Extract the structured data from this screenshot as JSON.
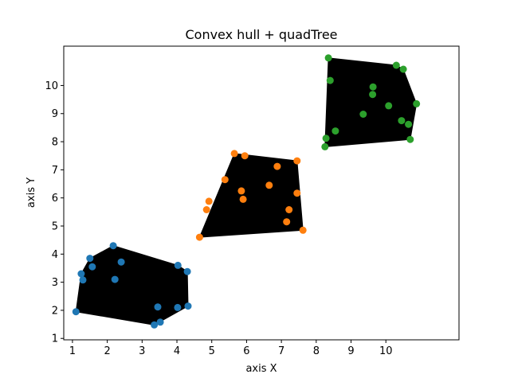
{
  "chart_data": {
    "type": "scatter",
    "title": "Convex hull + quadTree",
    "xlabel": "axis X",
    "ylabel": "axis Y",
    "xlim": [
      0.75,
      12.1
    ],
    "ylim": [
      0.95,
      11.4
    ],
    "xticks": [
      1,
      2,
      3,
      4,
      5,
      6,
      7,
      8,
      9,
      10
    ],
    "yticks": [
      1,
      2,
      3,
      4,
      5,
      6,
      7,
      8,
      9,
      10
    ],
    "grid": false,
    "legend": "none",
    "hull_color": "#000000",
    "series": [
      {
        "color": "#1f77b4",
        "points": [
          [
            1.1,
            1.95
          ],
          [
            1.25,
            3.3
          ],
          [
            1.3,
            3.08
          ],
          [
            1.5,
            3.85
          ],
          [
            1.57,
            3.55
          ],
          [
            2.17,
            4.3
          ],
          [
            2.22,
            3.1
          ],
          [
            2.4,
            3.72
          ],
          [
            3.35,
            1.48
          ],
          [
            3.45,
            2.12
          ],
          [
            3.52,
            1.58
          ],
          [
            4.02,
            2.1
          ],
          [
            4.03,
            3.6
          ],
          [
            4.3,
            3.38
          ],
          [
            4.32,
            2.15
          ]
        ],
        "hull": [
          [
            1.1,
            1.95
          ],
          [
            1.25,
            3.3
          ],
          [
            1.5,
            3.85
          ],
          [
            2.17,
            4.3
          ],
          [
            4.03,
            3.6
          ],
          [
            4.3,
            3.38
          ],
          [
            4.32,
            2.15
          ],
          [
            3.35,
            1.48
          ]
        ]
      },
      {
        "color": "#ff7f0e",
        "points": [
          [
            4.65,
            4.6
          ],
          [
            4.85,
            5.58
          ],
          [
            4.92,
            5.88
          ],
          [
            5.38,
            6.65
          ],
          [
            5.65,
            7.58
          ],
          [
            5.85,
            6.25
          ],
          [
            5.9,
            5.95
          ],
          [
            5.95,
            7.5
          ],
          [
            6.65,
            6.45
          ],
          [
            6.88,
            7.12
          ],
          [
            7.15,
            5.15
          ],
          [
            7.22,
            5.58
          ],
          [
            7.45,
            7.32
          ],
          [
            7.45,
            6.17
          ],
          [
            7.62,
            4.85
          ]
        ],
        "hull": [
          [
            4.65,
            4.6
          ],
          [
            5.65,
            7.58
          ],
          [
            7.45,
            7.32
          ],
          [
            7.62,
            4.85
          ]
        ]
      },
      {
        "color": "#2ca02c",
        "points": [
          [
            8.25,
            7.82
          ],
          [
            8.28,
            8.12
          ],
          [
            8.35,
            10.98
          ],
          [
            8.4,
            10.18
          ],
          [
            8.55,
            8.38
          ],
          [
            9.35,
            8.98
          ],
          [
            9.62,
            9.68
          ],
          [
            9.63,
            9.95
          ],
          [
            10.08,
            9.28
          ],
          [
            10.3,
            10.72
          ],
          [
            10.45,
            8.75
          ],
          [
            10.5,
            10.58
          ],
          [
            10.65,
            8.62
          ],
          [
            10.7,
            8.08
          ],
          [
            10.88,
            9.35
          ]
        ],
        "hull": [
          [
            8.25,
            7.82
          ],
          [
            8.35,
            10.98
          ],
          [
            10.3,
            10.72
          ],
          [
            10.5,
            10.58
          ],
          [
            10.88,
            9.35
          ],
          [
            10.7,
            8.08
          ]
        ]
      }
    ]
  }
}
